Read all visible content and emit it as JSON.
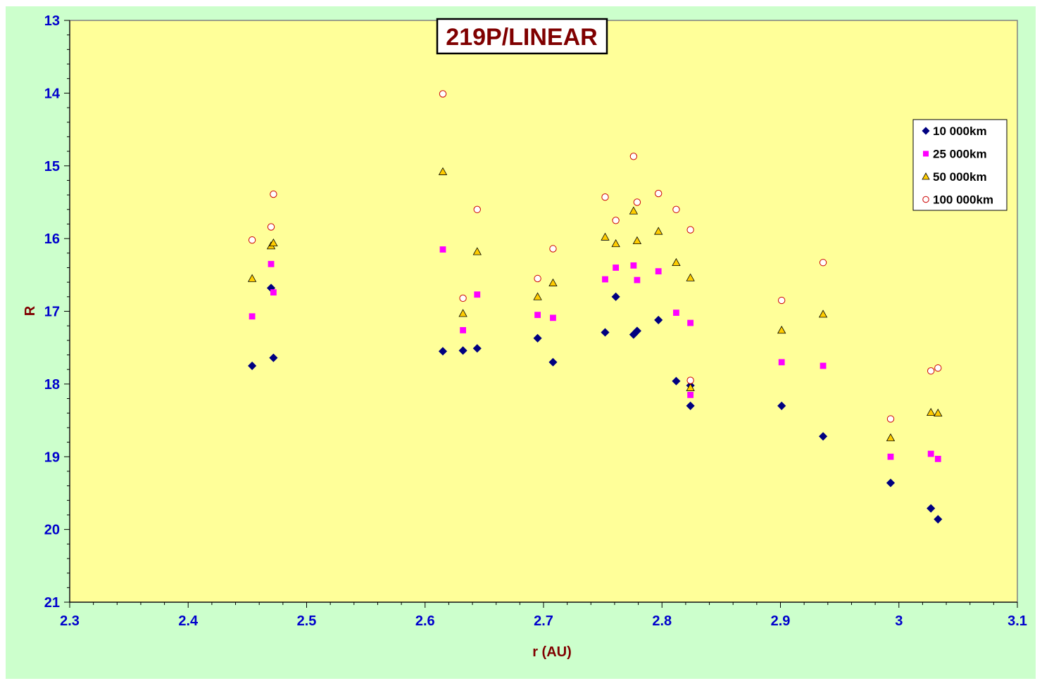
{
  "chart_data": {
    "type": "scatter",
    "title": "219P/LINEAR",
    "xlabel": "r (AU)",
    "ylabel": "R",
    "xlim": [
      2.3,
      3.1
    ],
    "ylim": [
      13,
      21
    ],
    "y_inverted": true,
    "x_ticks": [
      "2.3",
      "2.4",
      "2.5",
      "2.6",
      "2.7",
      "2.8",
      "2.9",
      "3",
      "3.1"
    ],
    "y_ticks": [
      "13",
      "14",
      "15",
      "16",
      "17",
      "18",
      "19",
      "20",
      "21"
    ],
    "grid": false,
    "legend_position": "right",
    "colors": {
      "outer_background": "#ccffcc",
      "plot_background": "#ffff99",
      "tick_labels": "#0000cc",
      "axis_titles": "#800000"
    },
    "series": [
      {
        "name": "10 000km",
        "marker": "diamond",
        "color": "#000080",
        "x": [
          2.454,
          2.47,
          2.472,
          2.615,
          2.632,
          2.644,
          2.695,
          2.708,
          2.752,
          2.761,
          2.776,
          2.779,
          2.797,
          2.812,
          2.824,
          2.824,
          2.901,
          2.936,
          2.993,
          3.027,
          3.033
        ],
        "y": [
          17.75,
          16.68,
          17.64,
          17.55,
          17.54,
          17.51,
          17.37,
          17.7,
          17.29,
          16.8,
          17.32,
          17.27,
          17.12,
          17.96,
          18.02,
          18.3,
          18.3,
          18.72,
          19.36,
          19.71,
          19.86
        ]
      },
      {
        "name": "25 000km",
        "marker": "square",
        "color": "#ff00ff",
        "x": [
          2.454,
          2.47,
          2.472,
          2.615,
          2.632,
          2.644,
          2.695,
          2.708,
          2.752,
          2.761,
          2.776,
          2.779,
          2.797,
          2.812,
          2.824,
          2.824,
          2.901,
          2.936,
          2.993,
          3.027,
          3.033
        ],
        "y": [
          17.07,
          16.35,
          16.74,
          16.15,
          17.26,
          16.77,
          17.05,
          17.09,
          16.56,
          16.4,
          16.37,
          16.57,
          16.45,
          17.02,
          18.15,
          17.16,
          17.7,
          17.75,
          19.0,
          18.96,
          19.03
        ]
      },
      {
        "name": "50 000km",
        "marker": "triangle",
        "color": "#ffcc00",
        "x": [
          2.454,
          2.47,
          2.472,
          2.615,
          2.632,
          2.644,
          2.695,
          2.708,
          2.752,
          2.761,
          2.776,
          2.779,
          2.797,
          2.812,
          2.824,
          2.824,
          2.901,
          2.936,
          2.993,
          3.027,
          3.033
        ],
        "y": [
          16.55,
          16.1,
          16.06,
          15.08,
          17.03,
          16.18,
          16.8,
          16.61,
          15.98,
          16.07,
          15.62,
          16.03,
          15.9,
          16.33,
          18.05,
          16.54,
          17.26,
          17.04,
          18.74,
          18.39,
          18.4
        ]
      },
      {
        "name": "100 000km",
        "marker": "circle",
        "color": "#cc0000",
        "x": [
          2.454,
          2.47,
          2.472,
          2.615,
          2.632,
          2.644,
          2.695,
          2.708,
          2.752,
          2.761,
          2.776,
          2.779,
          2.797,
          2.812,
          2.824,
          2.824,
          2.901,
          2.936,
          2.993,
          3.027,
          3.033
        ],
        "y": [
          16.02,
          15.84,
          15.39,
          14.01,
          16.82,
          15.6,
          16.55,
          16.14,
          15.43,
          15.75,
          14.87,
          15.5,
          15.38,
          15.6,
          17.95,
          15.88,
          16.85,
          16.33,
          18.48,
          17.82,
          17.78
        ]
      }
    ]
  }
}
